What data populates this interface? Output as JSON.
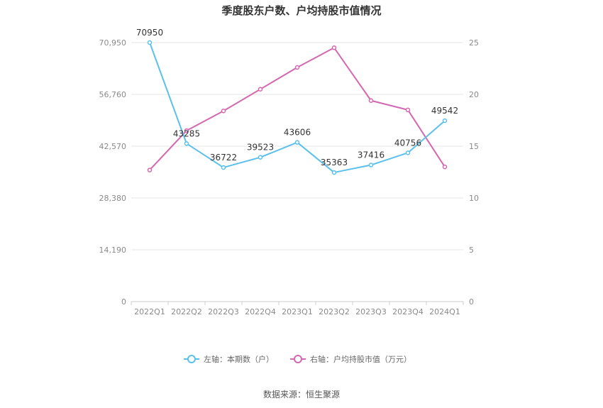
{
  "chart_data": {
    "type": "line",
    "title": "季度股东户数、户均持股市值情况",
    "categories": [
      "2022Q1",
      "2022Q2",
      "2022Q3",
      "2022Q4",
      "2023Q1",
      "2023Q2",
      "2023Q3",
      "2023Q4",
      "2024Q1"
    ],
    "y_left": {
      "ticks": [
        "0",
        "14,190",
        "28,380",
        "42,570",
        "56,760",
        "70,950"
      ],
      "ylim": [
        0,
        70950
      ]
    },
    "y_right": {
      "ticks": [
        "0",
        "5",
        "10",
        "15",
        "20",
        "25"
      ],
      "ylim": [
        0,
        25
      ]
    },
    "series": [
      {
        "name": "左轴：本期数（户）",
        "axis": "left",
        "color": "#5bc0eb",
        "values": [
          70950,
          43285,
          36722,
          39523,
          43606,
          35363,
          37416,
          40756,
          49542
        ],
        "labels": [
          "70950",
          "43285",
          "36722",
          "39523",
          "43606",
          "35363",
          "37416",
          "40756",
          "49542"
        ]
      },
      {
        "name": "右轴：户均持股市值（万元）",
        "axis": "right",
        "color": "#d468b0",
        "values": [
          12.7,
          16.5,
          18.4,
          20.5,
          22.6,
          24.5,
          19.4,
          18.5,
          13.0
        ]
      }
    ],
    "grid": true,
    "legend_position": "bottom"
  },
  "source": "数据来源：恒生聚源"
}
